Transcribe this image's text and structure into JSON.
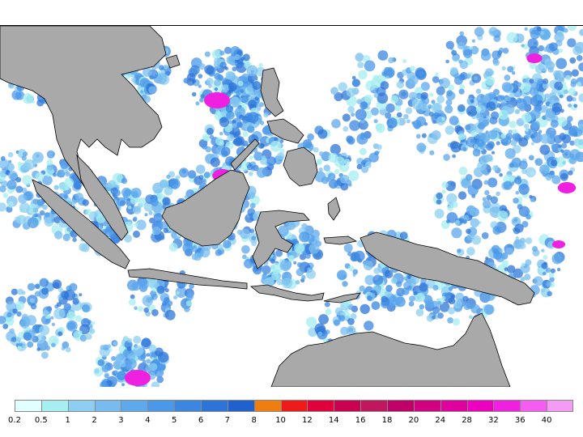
{
  "map": {
    "land_color": "#a9a9a9",
    "ocean_color": "#ffffff",
    "coast_color": "#000000"
  },
  "legend": {
    "colors": [
      "#e1ffff",
      "#a6eef0",
      "#8ccff2",
      "#78bcef",
      "#5ea8ec",
      "#4a98e8",
      "#3a86e1",
      "#2d74d8",
      "#2161cd",
      "#ef7d10",
      "#ef1a1a",
      "#e0003c",
      "#cc0050",
      "#c0185e",
      "#c00068",
      "#d00080",
      "#e000a0",
      "#ee00c0",
      "#f020e0",
      "#f55cf0",
      "#f59af5"
    ],
    "labels": [
      "0.2",
      "0.5",
      "1",
      "2",
      "3",
      "4",
      "5",
      "6",
      "7",
      "8",
      "10",
      "12",
      "14",
      "16",
      "18",
      "20",
      "24",
      "28",
      "32",
      "36",
      "40"
    ]
  }
}
